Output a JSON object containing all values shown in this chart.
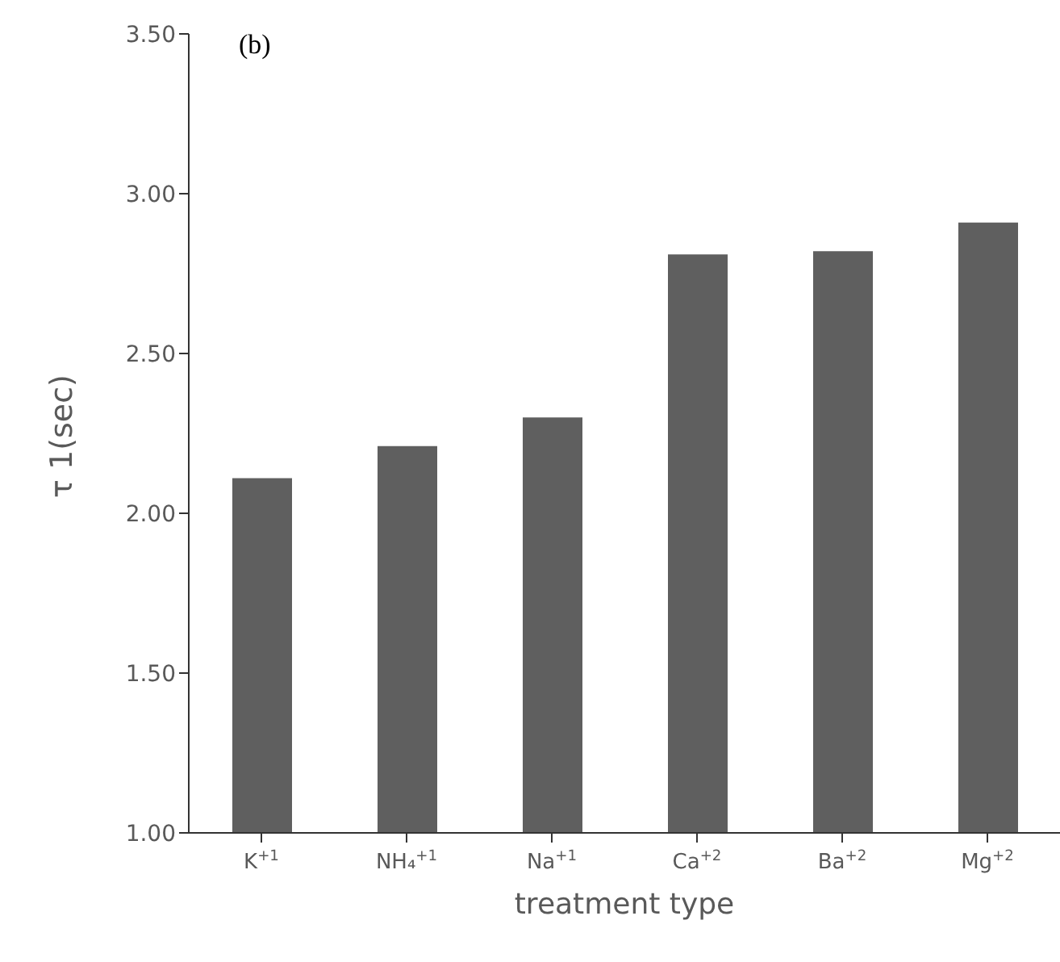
{
  "chart_data": {
    "type": "bar",
    "categories": [
      "K$^{+1}$",
      "NH₄$^{+1}$",
      "Na$^{+1}$",
      "Ca$^{+2}$",
      "Ba$^{+2}$",
      "Mg$^{+2}$"
    ],
    "values": [
      2.11,
      2.21,
      2.3,
      2.81,
      2.82,
      2.91
    ],
    "color": "#5f5f5f",
    "xlabel": "treatment type",
    "ylabel": "τ 1(sec)",
    "annotations": [
      "(b)"
    ],
    "ylim": [
      1.0,
      3.5
    ],
    "yticks": [
      {
        "value": 1.0,
        "label": "1.00"
      },
      {
        "value": 1.5,
        "label": "1.50"
      },
      {
        "value": 2.0,
        "label": "2.00"
      },
      {
        "value": 2.5,
        "label": "2.50"
      },
      {
        "value": 3.0,
        "label": "3.00"
      },
      {
        "value": 3.5,
        "label": "3.50"
      }
    ],
    "grid": false,
    "legend": false
  }
}
